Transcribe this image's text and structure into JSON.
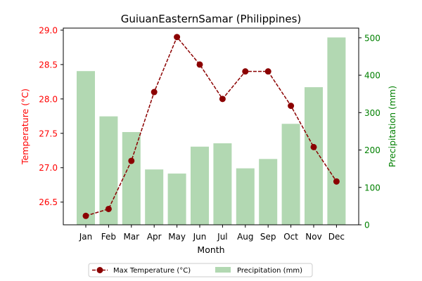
{
  "chart_data": {
    "type": "bar+line",
    "title": "GuiuanEasternSamar (Philippines)",
    "xlabel": "Month",
    "categories": [
      "Jan",
      "Feb",
      "Mar",
      "Apr",
      "May",
      "Jun",
      "Jul",
      "Aug",
      "Sep",
      "Oct",
      "Nov",
      "Dec"
    ],
    "temperature": {
      "name": "Max Temperature (°C)",
      "axis_label": "Temperature (°C)",
      "values": [
        26.3,
        26.4,
        27.1,
        28.1,
        28.9,
        28.5,
        28.0,
        28.4,
        28.4,
        27.9,
        27.3,
        26.8
      ],
      "ylim": [
        26.17,
        29.03
      ],
      "ticks": [
        "26.5",
        "27.0",
        "27.5",
        "28.0",
        "28.5",
        "29.0"
      ],
      "color": "#8b0000",
      "axis_color": "#ff0000"
    },
    "precipitation": {
      "name": "Precipitation (mm)",
      "axis_label": "Precipitation (mm)",
      "values": [
        411,
        290,
        248,
        148,
        137,
        209,
        218,
        151,
        176,
        270,
        368,
        501
      ],
      "ylim": [
        0,
        526
      ],
      "ticks": [
        "0",
        "100",
        "200",
        "300",
        "400",
        "500"
      ],
      "color": "#b2d8b2",
      "axis_color": "#008000"
    },
    "legend": {
      "placement": "bottom-center"
    },
    "grid": false
  }
}
